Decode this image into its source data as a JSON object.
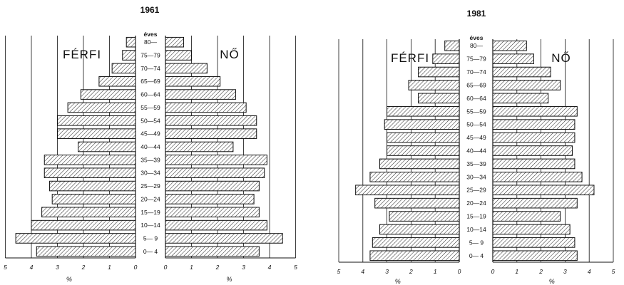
{
  "chart_data": [
    {
      "type": "bar",
      "title": "1961",
      "age_header": "éves",
      "male_label": "FÉRFI",
      "female_label": "NŐ",
      "xlabel_left": "%",
      "xlabel_right": "%",
      "xlim": [
        0,
        5
      ],
      "xticks_left": [
        "5",
        "4",
        "3",
        "2",
        "1",
        "0"
      ],
      "xticks_right": [
        "0",
        "1",
        "2",
        "3",
        "4",
        "5"
      ],
      "categories": [
        "0— 4",
        "5— 9",
        "10—14",
        "15—19",
        "20—24",
        "25—29",
        "30—34",
        "35—39",
        "40—44",
        "45—49",
        "50—54",
        "55—59",
        "60—64",
        "65—69",
        "70—74",
        "75—79",
        "80—"
      ],
      "series": [
        {
          "name": "FÉRFI",
          "values": [
            3.8,
            4.6,
            4.0,
            3.6,
            3.2,
            3.3,
            3.5,
            3.5,
            2.2,
            3.0,
            3.0,
            2.6,
            2.1,
            1.4,
            0.9,
            0.5,
            0.35
          ]
        },
        {
          "name": "NŐ",
          "values": [
            3.6,
            4.5,
            3.9,
            3.6,
            3.4,
            3.6,
            3.8,
            3.9,
            2.6,
            3.5,
            3.5,
            3.1,
            2.7,
            2.1,
            1.6,
            1.0,
            0.7
          ]
        }
      ],
      "grid": "vertical"
    },
    {
      "type": "bar",
      "title": "1981",
      "age_header": "éves",
      "male_label": "FÉRFI",
      "female_label": "NŐ",
      "xlabel_left": "%",
      "xlabel_right": "%",
      "xlim": [
        0,
        5
      ],
      "xticks_left": [
        "5",
        "4",
        "3",
        "2",
        "1",
        "0"
      ],
      "xticks_right": [
        "0",
        "1",
        "2",
        "3",
        "4",
        "5"
      ],
      "categories": [
        "0— 4",
        "5— 9",
        "10—14",
        "15—19",
        "20—24",
        "25—29",
        "30—34",
        "35—39",
        "40—44",
        "45—49",
        "50—54",
        "55—59",
        "60—64",
        "65—69",
        "70—74",
        "75—79",
        "80—"
      ],
      "series": [
        {
          "name": "FÉRFI",
          "values": [
            3.7,
            3.6,
            3.3,
            2.9,
            3.5,
            4.3,
            3.7,
            3.3,
            3.0,
            3.0,
            3.1,
            3.0,
            1.7,
            2.1,
            1.7,
            1.1,
            0.6
          ]
        },
        {
          "name": "NŐ",
          "values": [
            3.5,
            3.4,
            3.2,
            2.8,
            3.5,
            4.2,
            3.7,
            3.4,
            3.3,
            3.4,
            3.4,
            3.5,
            2.3,
            2.8,
            2.4,
            1.7,
            1.4
          ]
        }
      ],
      "grid": "vertical"
    }
  ],
  "colors": {
    "ink": "#111111",
    "hatch": "#333333",
    "background": "#ffffff"
  }
}
